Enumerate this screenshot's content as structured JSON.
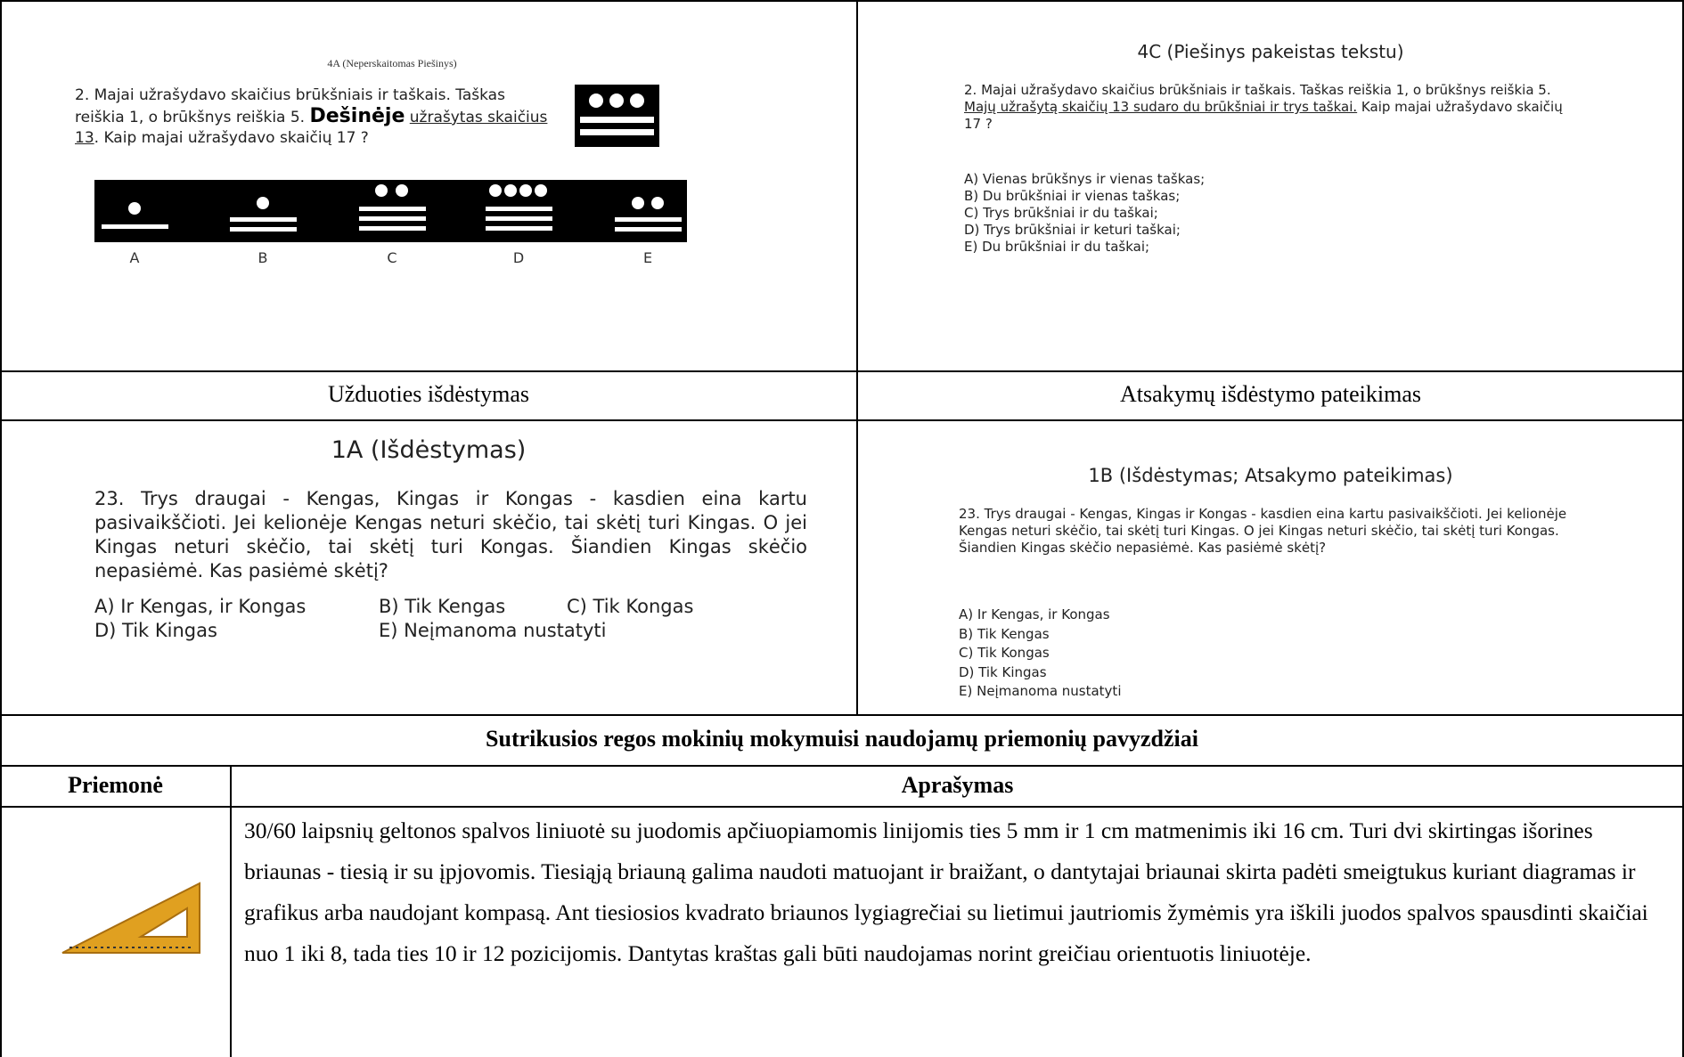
{
  "top_row": {
    "left": {
      "heading": "4A (Neperskaitomas Piešinys)",
      "question_prefix": "2. Majai užrašydavo skaičius brūkšniais ir taškais. Taškas reiškia 1, o brūkšnys reiškia 5. ",
      "question_emphasis": "Dešinėje",
      "question_underlined": "užrašytas skaičius 13",
      "question_suffix": ". Kaip majai užrašydavo skaičių 17 ?",
      "option_letters": [
        "A",
        "B",
        "C",
        "D",
        "E"
      ]
    },
    "right": {
      "heading": "4C (Piešinys pakeistas tekstu)",
      "question_prefix": "2. Majai užrašydavo skaičius brūkšniais ir taškais. Taškas reiškia 1, o brūkšnys reiškia 5. ",
      "question_underlined": "Majų užrašytą skaičių 13 sudaro du brūkšniai ir trys taškai.",
      "question_suffix": " Kaip majai užrašydavo skaičių 17 ?",
      "options": [
        "A) Vienas brūkšnys ir vienas taškas;",
        "B) Du brūkšniai ir vienas taškas;",
        "C) Trys brūkšniai ir du taškai;",
        "D) Trys brūkšniai ir keturi taškai;",
        "E) Du brūkšniai ir du taškai;"
      ]
    }
  },
  "captions": [
    "Užduoties išdėstymas",
    "Atsakymų išdėstymo pateikimas"
  ],
  "middle_row": {
    "left": {
      "heading": "1A (Išdėstymas)",
      "question": "23.  Trys draugai - Kengas, Kingas ir Kongas - kasdien eina kartu pasivaikščioti. Jei kelionėje Kengas neturi skėčio, tai skėtį turi Kingas. O jei Kingas neturi skėčio, tai skėtį turi Kongas. Šiandien Kingas skėčio nepasiėmė. Kas pasiėmė skėtį?",
      "options": [
        "A) Ir Kengas, ir Kongas",
        "B) Tik Kengas",
        "C) Tik Kongas",
        "D) Tik Kingas",
        "E) Neįmanoma nustatyti"
      ]
    },
    "right": {
      "heading": "1B (Išdėstymas; Atsakymo pateikimas)",
      "question": "23. Trys draugai - Kengas, Kingas ir Kongas - kasdien eina kartu pasivaikščioti. Jei kelionėje Kengas neturi skėčio, tai skėtį turi Kingas. O jei Kingas neturi skėčio, tai skėtį turi Kongas. Šiandien Kingas skėčio nepasiėmė. Kas pasiėmė skėtį?",
      "options": [
        "A) Ir Kengas, ir Kongas",
        "B) Tik Kengas",
        "C) Tik Kongas",
        "D) Tik Kingas",
        "E) Neįmanoma nustatyti"
      ]
    }
  },
  "section_title": "Sutrikusios regos mokinių mokymuisi naudojamų priemonių pavyzdžiai",
  "table": {
    "headers": [
      "Priemonė",
      "Aprašymas"
    ],
    "rows": [
      [
        "30/60 laipsnių geltonos spalvos liniuotė su juodomis apčiuopiamomis linijomis ties 5 mm ir 1 cm matmenimis iki 16 cm. Turi dvi skirtingas išorines briaunas - tiesią ir su įpjovomis. Tiesiąją briauną galima naudoti matuojant ir braižant, o dantytajai briaunai skirta padėti smeigtukus kuriant diagramas ir grafikus arba naudojant kompasą. Ant tiesiosios kvadrato briaunos lygiagrečiai su lietimui jautriomis žymėmis yra iškili juodos spalvos spausdinti skaičiai nuo 1 iki 8, tada ties 10 ir 12 pozicijomis. Dantytas kraštas gali būti naudojamas norint greičiau orientuotis liniuotėje."
      ]
    ]
  }
}
